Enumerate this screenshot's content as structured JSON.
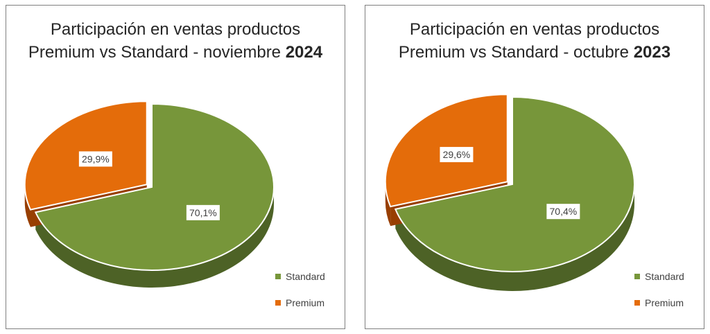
{
  "colors": {
    "standard_top": "#77963A",
    "standard_side": "#4D6226",
    "premium_top": "#E46C0A",
    "premium_side": "#983F02"
  },
  "chart_data": [
    {
      "type": "pie",
      "title_line1": "Participación en ventas productos",
      "title_line2_text": "Premium vs Standard - noviembre ",
      "title_line2_bold": "2024",
      "slices": [
        {
          "label": "Standard",
          "value": 70.1,
          "data_label": "70,1%"
        },
        {
          "label": "Premium",
          "value": 29.9,
          "data_label": "29,9%"
        }
      ],
      "legend": [
        "Standard",
        "Premium"
      ],
      "legend_position": "bottom-right"
    },
    {
      "type": "pie",
      "title_line1": "Participación en ventas productos",
      "title_line2_text": "Premium vs Standard - octubre ",
      "title_line2_bold": "2023",
      "slices": [
        {
          "label": "Standard",
          "value": 70.4,
          "data_label": "70,4%"
        },
        {
          "label": "Premium",
          "value": 29.6,
          "data_label": "29,6%"
        }
      ],
      "legend": [
        "Standard",
        "Premium"
      ],
      "legend_position": "bottom-right"
    }
  ]
}
